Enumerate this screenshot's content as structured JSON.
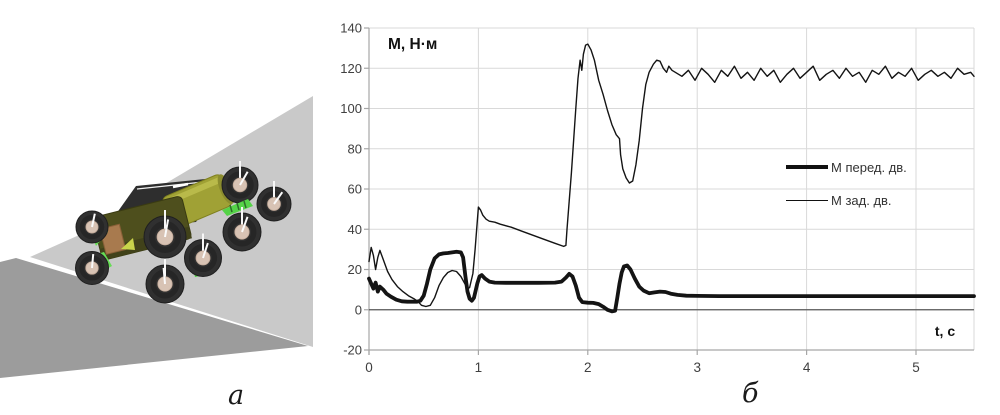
{
  "figure": {
    "panel_a_label": "а",
    "panel_b_label": "б"
  },
  "colors": {
    "line": "#141414",
    "grid": "#d9d9d9",
    "axis": "#a6a6a6",
    "zero_line": "#595959",
    "tick_text": "#404040",
    "title_text": "#111111",
    "ramp_light": "#c9c9c9",
    "ramp_dark": "#9c9c9c",
    "wheel": "#303030",
    "hub": "#d8c3b4",
    "body_front": "#4e4f1d",
    "body_rear": "#a0a135",
    "accent_green": "#55d348",
    "accent_brown": "#a87a4e"
  },
  "chart_data": {
    "type": "line",
    "title": "М, Н·м",
    "xlabel": "t, с",
    "xlim": [
      0,
      5.53
    ],
    "ylim": [
      -20,
      140
    ],
    "x_ticks": [
      0,
      1,
      2,
      3,
      4,
      5
    ],
    "y_ticks": [
      -20,
      0,
      20,
      40,
      60,
      80,
      100,
      120,
      140
    ],
    "grid": true,
    "legend_position": "middle-right",
    "series": [
      {
        "name": "М перед. дв.",
        "style": "thick",
        "points": [
          [
            0,
            15.5
          ],
          [
            0.02,
            13
          ],
          [
            0.04,
            10.5
          ],
          [
            0.06,
            13.5
          ],
          [
            0.08,
            9
          ],
          [
            0.1,
            11.5
          ],
          [
            0.13,
            10
          ],
          [
            0.16,
            8
          ],
          [
            0.2,
            6.5
          ],
          [
            0.25,
            5
          ],
          [
            0.3,
            4.2
          ],
          [
            0.35,
            4
          ],
          [
            0.4,
            4
          ],
          [
            0.44,
            4
          ],
          [
            0.47,
            4.5
          ],
          [
            0.5,
            7
          ],
          [
            0.53,
            13
          ],
          [
            0.56,
            20
          ],
          [
            0.6,
            25.5
          ],
          [
            0.64,
            27.5
          ],
          [
            0.68,
            28
          ],
          [
            0.72,
            28.2
          ],
          [
            0.76,
            28.5
          ],
          [
            0.8,
            28.8
          ],
          [
            0.84,
            28.5
          ],
          [
            0.86,
            26
          ],
          [
            0.88,
            17
          ],
          [
            0.9,
            9
          ],
          [
            0.92,
            5.5
          ],
          [
            0.94,
            4.5
          ],
          [
            0.96,
            6
          ],
          [
            0.99,
            13
          ],
          [
            1.01,
            16.5
          ],
          [
            1.03,
            17.2
          ],
          [
            1.06,
            15.5
          ],
          [
            1.1,
            14
          ],
          [
            1.15,
            13.5
          ],
          [
            1.25,
            13.4
          ],
          [
            1.4,
            13.4
          ],
          [
            1.55,
            13.4
          ],
          [
            1.7,
            13.5
          ],
          [
            1.76,
            14
          ],
          [
            1.8,
            16
          ],
          [
            1.83,
            17.8
          ],
          [
            1.86,
            16.5
          ],
          [
            1.89,
            12
          ],
          [
            1.92,
            6
          ],
          [
            1.95,
            3.8
          ],
          [
            2,
            3.5
          ],
          [
            2.05,
            3.4
          ],
          [
            2.1,
            2.8
          ],
          [
            2.14,
            1.5
          ],
          [
            2.18,
            0
          ],
          [
            2.22,
            -0.8
          ],
          [
            2.25,
            -0.5
          ],
          [
            2.27,
            6
          ],
          [
            2.29,
            13
          ],
          [
            2.31,
            18.5
          ],
          [
            2.33,
            21.5
          ],
          [
            2.36,
            22
          ],
          [
            2.39,
            20
          ],
          [
            2.43,
            15.5
          ],
          [
            2.47,
            11.5
          ],
          [
            2.51,
            9.5
          ],
          [
            2.56,
            8.2
          ],
          [
            2.61,
            8.6
          ],
          [
            2.66,
            9
          ],
          [
            2.71,
            8.8
          ],
          [
            2.76,
            8
          ],
          [
            2.82,
            7.4
          ],
          [
            2.9,
            7
          ],
          [
            3,
            6.9
          ],
          [
            3.2,
            6.8
          ],
          [
            3.4,
            6.8
          ],
          [
            3.6,
            6.8
          ],
          [
            3.8,
            6.8
          ],
          [
            4,
            6.8
          ],
          [
            4.2,
            6.8
          ],
          [
            4.4,
            6.8
          ],
          [
            4.6,
            6.8
          ],
          [
            4.8,
            6.8
          ],
          [
            5,
            6.8
          ],
          [
            5.2,
            6.8
          ],
          [
            5.4,
            6.8
          ],
          [
            5.53,
            6.8
          ]
        ]
      },
      {
        "name": "М зад. дв.",
        "style": "thin",
        "points": [
          [
            0,
            24
          ],
          [
            0.02,
            31
          ],
          [
            0.04,
            27
          ],
          [
            0.06,
            20
          ],
          [
            0.08,
            26
          ],
          [
            0.1,
            29.5
          ],
          [
            0.13,
            25
          ],
          [
            0.17,
            19
          ],
          [
            0.21,
            15
          ],
          [
            0.26,
            11.5
          ],
          [
            0.31,
            9
          ],
          [
            0.36,
            7
          ],
          [
            0.41,
            5.5
          ],
          [
            0.45,
            4
          ],
          [
            0.48,
            2.2
          ],
          [
            0.52,
            1.6
          ],
          [
            0.56,
            2.2
          ],
          [
            0.6,
            6
          ],
          [
            0.64,
            12
          ],
          [
            0.68,
            16
          ],
          [
            0.72,
            18.5
          ],
          [
            0.76,
            19.5
          ],
          [
            0.8,
            19
          ],
          [
            0.84,
            16.5
          ],
          [
            0.87,
            13.5
          ],
          [
            0.9,
            10.5
          ],
          [
            0.92,
            11
          ],
          [
            0.95,
            18
          ],
          [
            0.97,
            30
          ],
          [
            0.99,
            44
          ],
          [
            1,
            51
          ],
          [
            1.02,
            49.5
          ],
          [
            1.04,
            47
          ],
          [
            1.07,
            45
          ],
          [
            1.1,
            44
          ],
          [
            1.15,
            43.5
          ],
          [
            1.2,
            42.5
          ],
          [
            1.3,
            41
          ],
          [
            1.4,
            39
          ],
          [
            1.5,
            37
          ],
          [
            1.6,
            35
          ],
          [
            1.7,
            33
          ],
          [
            1.78,
            31.5
          ],
          [
            1.8,
            32
          ],
          [
            1.81,
            40
          ],
          [
            1.83,
            54
          ],
          [
            1.85,
            68
          ],
          [
            1.87,
            84
          ],
          [
            1.89,
            100
          ],
          [
            1.91,
            115
          ],
          [
            1.93,
            124
          ],
          [
            1.945,
            119
          ],
          [
            1.96,
            127
          ],
          [
            1.98,
            131.5
          ],
          [
            2,
            132
          ],
          [
            2.03,
            129
          ],
          [
            2.06,
            124
          ],
          [
            2.1,
            114
          ],
          [
            2.14,
            107
          ],
          [
            2.18,
            99
          ],
          [
            2.22,
            92
          ],
          [
            2.26,
            87
          ],
          [
            2.29,
            85
          ],
          [
            2.3,
            77
          ],
          [
            2.32,
            70
          ],
          [
            2.35,
            65.5
          ],
          [
            2.38,
            63
          ],
          [
            2.41,
            64
          ],
          [
            2.44,
            72
          ],
          [
            2.47,
            84
          ],
          [
            2.5,
            100
          ],
          [
            2.53,
            112
          ],
          [
            2.56,
            118
          ],
          [
            2.6,
            122
          ],
          [
            2.63,
            124
          ],
          [
            2.66,
            123.5
          ],
          [
            2.69,
            120
          ],
          [
            2.72,
            118
          ],
          [
            2.74,
            121
          ],
          [
            2.77,
            119
          ],
          [
            2.8,
            118
          ],
          [
            2.86,
            116
          ],
          [
            2.92,
            119
          ],
          [
            2.98,
            114
          ],
          [
            3.04,
            120
          ],
          [
            3.1,
            117
          ],
          [
            3.16,
            113
          ],
          [
            3.22,
            119
          ],
          [
            3.28,
            116
          ],
          [
            3.34,
            121
          ],
          [
            3.4,
            115
          ],
          [
            3.46,
            118
          ],
          [
            3.52,
            114
          ],
          [
            3.58,
            120
          ],
          [
            3.64,
            116
          ],
          [
            3.7,
            119
          ],
          [
            3.76,
            113
          ],
          [
            3.82,
            117
          ],
          [
            3.88,
            120
          ],
          [
            3.94,
            115
          ],
          [
            4,
            118
          ],
          [
            4.06,
            121
          ],
          [
            4.12,
            114
          ],
          [
            4.18,
            117
          ],
          [
            4.24,
            119
          ],
          [
            4.3,
            115
          ],
          [
            4.36,
            120
          ],
          [
            4.42,
            116
          ],
          [
            4.48,
            118
          ],
          [
            4.54,
            113
          ],
          [
            4.6,
            119
          ],
          [
            4.66,
            117
          ],
          [
            4.72,
            121
          ],
          [
            4.78,
            115
          ],
          [
            4.84,
            118
          ],
          [
            4.9,
            116
          ],
          [
            4.96,
            120
          ],
          [
            5.02,
            114
          ],
          [
            5.08,
            117
          ],
          [
            5.14,
            119
          ],
          [
            5.2,
            116
          ],
          [
            5.26,
            118
          ],
          [
            5.32,
            115
          ],
          [
            5.38,
            120
          ],
          [
            5.44,
            117
          ],
          [
            5.5,
            118
          ],
          [
            5.53,
            116
          ]
        ]
      }
    ]
  }
}
